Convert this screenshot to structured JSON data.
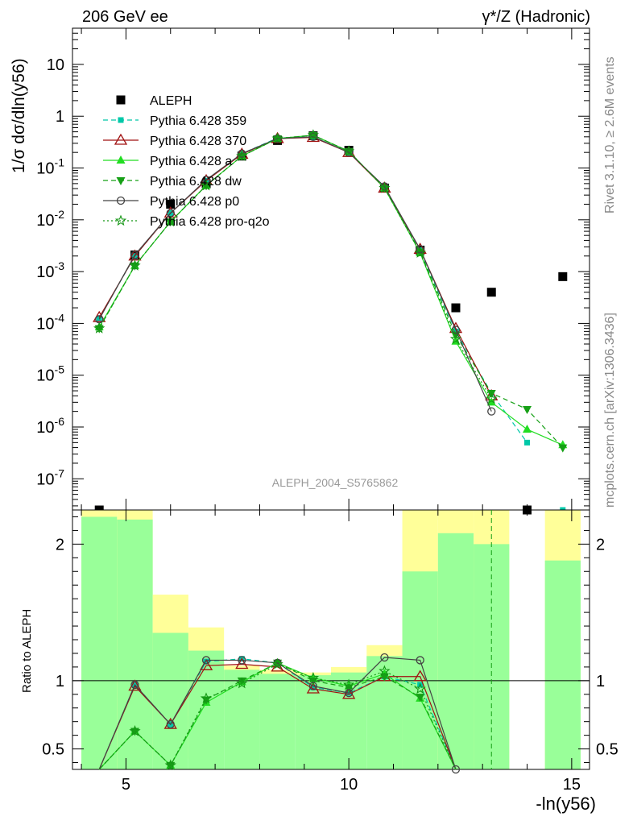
{
  "header": {
    "left": "206 GeV ee",
    "right": "γ*/Z (Hadronic)"
  },
  "side_labels": {
    "rivet": "Rivet 3.1.10, ≥ 2.6M events",
    "mcplots": "mcplots.cern.ch [arXiv:1306.3436]"
  },
  "watermark": "ALEPH_2004_S5765862",
  "axes": {
    "ylabel_main": "1/σ  dσ/dln(y56)",
    "ylabel_ratio": "Ratio to ALEPH",
    "xlabel": "-ln(y56)"
  },
  "chart_data": [
    {
      "type": "scatter",
      "panel": "main",
      "yscale": "log",
      "xlim": [
        3.8,
        15.4
      ],
      "ylim": [
        2.5e-08,
        50
      ],
      "x_ticks": [
        5,
        10,
        15
      ],
      "y_ticks": [
        "10^-7",
        "10^-6",
        "10^-5",
        "10^-4",
        "10^-3",
        "10^-2",
        "10^-1",
        "1",
        "10"
      ],
      "legend": "top-left",
      "series": [
        {
          "name": "ALEPH",
          "color": "#000000",
          "style": "square-marker",
          "points": [
            [
              4.4,
              0.0
            ],
            [
              5.2,
              0.0021
            ],
            [
              6.0,
              0.02
            ],
            [
              6.8,
              0.05
            ],
            [
              7.6,
              0.17
            ],
            [
              8.4,
              0.34
            ],
            [
              9.2,
              0.42
            ],
            [
              10.0,
              0.22
            ],
            [
              10.8,
              0.041
            ],
            [
              11.6,
              0.0026
            ],
            [
              12.4,
              0.0002
            ],
            [
              13.2,
              0.0004
            ],
            [
              14.0,
              0.0
            ],
            [
              14.8,
              0.0008
            ]
          ]
        },
        {
          "name": "Pythia 6.428 359",
          "color": "#00c8a8",
          "style": "dashed",
          "points": [
            [
              4.4,
              0.000125
            ],
            [
              5.2,
              0.002
            ],
            [
              6.0,
              0.0135
            ],
            [
              6.8,
              0.057
            ],
            [
              7.6,
              0.19
            ],
            [
              8.4,
              0.38
            ],
            [
              9.2,
              0.4
            ],
            [
              10.0,
              0.2
            ],
            [
              10.8,
              0.042
            ],
            [
              11.6,
              0.0026
            ],
            [
              12.4,
              7e-05
            ],
            [
              13.2,
              4.5e-06
            ],
            [
              14.0,
              5e-07
            ],
            [
              14.8,
              0.0
            ]
          ]
        },
        {
          "name": "Pythia 6.428 370",
          "color": "#a01010",
          "style": "solid",
          "points": [
            [
              4.4,
              0.00013
            ],
            [
              5.2,
              0.002
            ],
            [
              6.0,
              0.0135
            ],
            [
              6.8,
              0.057
            ],
            [
              7.6,
              0.185
            ],
            [
              8.4,
              0.37
            ],
            [
              9.2,
              0.39
            ],
            [
              10.0,
              0.2
            ],
            [
              10.8,
              0.041
            ],
            [
              11.6,
              0.0027
            ],
            [
              12.4,
              8e-05
            ],
            [
              13.2,
              4e-06
            ]
          ]
        },
        {
          "name": "Pythia 6.428 a",
          "color": "#22dd22",
          "style": "solid",
          "points": [
            [
              4.4,
              8.5e-05
            ],
            [
              5.2,
              0.0013
            ],
            [
              6.0,
              0.0092
            ],
            [
              6.8,
              0.046
            ],
            [
              7.6,
              0.17
            ],
            [
              8.4,
              0.37
            ],
            [
              9.2,
              0.43
            ],
            [
              10.0,
              0.21
            ],
            [
              10.8,
              0.041
            ],
            [
              11.6,
              0.0023
            ],
            [
              12.4,
              4.5e-05
            ],
            [
              13.2,
              3e-06
            ],
            [
              14.0,
              9e-07
            ],
            [
              14.8,
              4.5e-07
            ]
          ]
        },
        {
          "name": "Pythia 6.428 dw",
          "color": "#16a016",
          "style": "dashed",
          "points": [
            [
              4.4,
              8e-05
            ],
            [
              5.2,
              0.0013
            ],
            [
              6.0,
              0.0092
            ],
            [
              6.8,
              0.046
            ],
            [
              7.6,
              0.17
            ],
            [
              8.4,
              0.37
            ],
            [
              9.2,
              0.43
            ],
            [
              10.0,
              0.21
            ],
            [
              10.8,
              0.041
            ],
            [
              11.6,
              0.0024
            ],
            [
              12.4,
              6e-05
            ],
            [
              13.2,
              4.5e-06
            ],
            [
              14.0,
              2.2e-06
            ],
            [
              14.8,
              4e-07
            ]
          ]
        },
        {
          "name": "Pythia 6.428 p0",
          "color": "#444444",
          "style": "solid",
          "points": [
            [
              4.4,
              0.00012
            ],
            [
              5.2,
              0.0021
            ],
            [
              6.0,
              0.0135
            ],
            [
              6.8,
              0.059
            ],
            [
              7.6,
              0.19
            ],
            [
              8.4,
              0.37
            ],
            [
              9.2,
              0.4
            ],
            [
              10.0,
              0.2
            ],
            [
              10.8,
              0.044
            ],
            [
              11.6,
              0.0027
            ],
            [
              12.4,
              7.5e-05
            ],
            [
              13.2,
              2e-06
            ]
          ]
        },
        {
          "name": "Pythia 6.428 pro-q2o",
          "color": "#149614",
          "style": "dotted",
          "points": [
            [
              4.4,
              8e-05
            ],
            [
              5.2,
              0.0013
            ],
            [
              6.0,
              0.0092
            ],
            [
              6.8,
              0.046
            ],
            [
              7.6,
              0.17
            ],
            [
              8.4,
              0.37
            ],
            [
              9.2,
              0.43
            ],
            [
              10.0,
              0.21
            ],
            [
              10.8,
              0.041
            ],
            [
              11.6,
              0.0023
            ],
            [
              12.4,
              5e-05
            ],
            [
              13.2,
              3.5e-06
            ]
          ]
        }
      ]
    },
    {
      "type": "line",
      "panel": "ratio",
      "xlim": [
        3.8,
        15.4
      ],
      "ylim": [
        0.35,
        2.25
      ],
      "y_ticks": [
        0.5,
        1,
        2
      ],
      "bands": [
        {
          "x0": 4.0,
          "x1": 4.8,
          "yellow": [
            0.0,
            2.25
          ],
          "green": [
            0.0,
            2.2
          ]
        },
        {
          "x0": 4.8,
          "x1": 5.6,
          "yellow": [
            0.0,
            2.25
          ],
          "green": [
            0.0,
            2.18
          ]
        },
        {
          "x0": 5.6,
          "x1": 6.4,
          "yellow": [
            0.43,
            1.63
          ],
          "green": [
            0.0,
            1.35
          ]
        },
        {
          "x0": 6.4,
          "x1": 7.2,
          "yellow": [
            0.74,
            1.39
          ],
          "green": [
            0.0,
            1.22
          ]
        },
        {
          "x0": 7.2,
          "x1": 8.0,
          "yellow": [
            0.92,
            1.11
          ],
          "green": [
            0.0,
            1.08
          ]
        },
        {
          "x0": 8.0,
          "x1": 8.8,
          "yellow": [
            0.95,
            1.08
          ],
          "green": [
            0.0,
            1.05
          ]
        },
        {
          "x0": 8.8,
          "x1": 9.6,
          "yellow": [
            0.95,
            1.06
          ],
          "green": [
            0.0,
            1.04
          ]
        },
        {
          "x0": 9.6,
          "x1": 10.4,
          "yellow": [
            0.93,
            1.1
          ],
          "green": [
            0.0,
            1.06
          ]
        },
        {
          "x0": 10.4,
          "x1": 11.2,
          "yellow": [
            0.78,
            1.26
          ],
          "green": [
            0.0,
            1.18
          ]
        },
        {
          "x0": 11.2,
          "x1": 12.0,
          "yellow": [
            0.0,
            2.25
          ],
          "green": [
            0.0,
            1.8
          ]
        },
        {
          "x0": 12.0,
          "x1": 12.8,
          "yellow": [
            0.0,
            2.25
          ],
          "green": [
            0.0,
            2.08
          ]
        },
        {
          "x0": 12.8,
          "x1": 13.6,
          "yellow": [
            0.0,
            2.25
          ],
          "green": [
            0.0,
            2.0
          ]
        },
        {
          "x0": 14.4,
          "x1": 15.2,
          "yellow": [
            0.0,
            2.25
          ],
          "green": [
            0.0,
            1.88
          ]
        }
      ],
      "series": [
        {
          "name": "Pythia 6.428 359",
          "color": "#00c8a8",
          "style": "dashed",
          "points": [
            [
              4.4,
              0.2
            ],
            [
              5.2,
              0.97
            ],
            [
              6.0,
              0.68
            ],
            [
              6.8,
              1.14
            ],
            [
              7.6,
              1.16
            ],
            [
              8.4,
              1.13
            ],
            [
              9.2,
              0.95
            ],
            [
              10.0,
              0.91
            ],
            [
              10.8,
              1.03
            ],
            [
              11.6,
              0.97
            ],
            [
              12.4,
              0.0
            ]
          ]
        },
        {
          "name": "Pythia 6.428 370",
          "color": "#a01010",
          "style": "solid",
          "points": [
            [
              4.4,
              0.2
            ],
            [
              5.2,
              0.96
            ],
            [
              6.0,
              0.68
            ],
            [
              6.8,
              1.11
            ],
            [
              7.6,
              1.12
            ],
            [
              8.4,
              1.1
            ],
            [
              9.2,
              0.94
            ],
            [
              10.0,
              0.9
            ],
            [
              10.8,
              1.03
            ],
            [
              11.6,
              1.03
            ],
            [
              12.4,
              0.0
            ]
          ]
        },
        {
          "name": "Pythia 6.428 a",
          "color": "#22dd22",
          "style": "solid",
          "points": [
            [
              4.4,
              0.15
            ],
            [
              5.2,
              0.63
            ],
            [
              6.0,
              0.38
            ],
            [
              6.8,
              0.84
            ],
            [
              7.6,
              0.99
            ],
            [
              8.4,
              1.13
            ],
            [
              9.2,
              1.02
            ],
            [
              10.0,
              0.96
            ],
            [
              10.8,
              1.05
            ],
            [
              11.6,
              0.87
            ],
            [
              12.4,
              0.0
            ]
          ]
        },
        {
          "name": "Pythia 6.428 dw",
          "color": "#16a016",
          "style": "dashed",
          "points": [
            [
              4.4,
              0.15
            ],
            [
              5.2,
              0.63
            ],
            [
              6.0,
              0.38
            ],
            [
              6.8,
              0.86
            ],
            [
              7.6,
              1.0
            ],
            [
              8.4,
              1.13
            ],
            [
              9.2,
              1.0
            ],
            [
              10.0,
              0.95
            ],
            [
              10.8,
              1.03
            ],
            [
              11.6,
              0.88
            ],
            [
              12.4,
              0.0
            ]
          ]
        },
        {
          "name": "Pythia 6.428 p0",
          "color": "#444444",
          "style": "solid",
          "points": [
            [
              4.4,
              0.2
            ],
            [
              5.2,
              0.97
            ],
            [
              6.0,
              0.68
            ],
            [
              6.8,
              1.15
            ],
            [
              7.6,
              1.15
            ],
            [
              8.4,
              1.13
            ],
            [
              9.2,
              0.96
            ],
            [
              10.0,
              0.91
            ],
            [
              10.8,
              1.17
            ],
            [
              11.6,
              1.15
            ],
            [
              12.4,
              0.35
            ]
          ]
        },
        {
          "name": "Pythia 6.428 pro-q2o",
          "color": "#149614",
          "style": "dotted",
          "points": [
            [
              4.4,
              0.15
            ],
            [
              5.2,
              0.63
            ],
            [
              6.0,
              0.38
            ],
            [
              6.8,
              0.87
            ],
            [
              7.6,
              0.98
            ],
            [
              8.4,
              1.12
            ],
            [
              9.2,
              1.02
            ],
            [
              10.0,
              0.97
            ],
            [
              10.8,
              1.07
            ],
            [
              11.6,
              0.94
            ],
            [
              12.4,
              0.0
            ]
          ]
        }
      ]
    }
  ]
}
